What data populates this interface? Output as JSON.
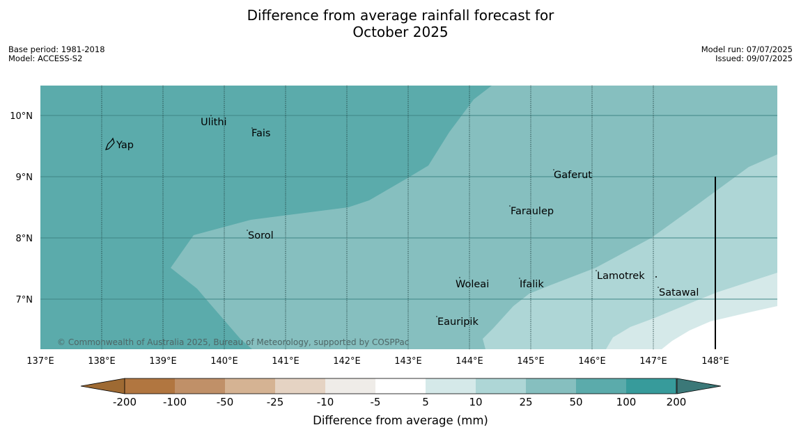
{
  "title": {
    "line1": "Difference from average rainfall forecast for",
    "line2": "October 2025"
  },
  "meta": {
    "base_period": "Base period: 1981-2018",
    "model": "Model: ACCESS-S2",
    "model_run": "Model run: 07/07/2025",
    "issued": "Issued: 09/07/2025"
  },
  "map": {
    "lon_labels": [
      "137°E",
      "138°E",
      "139°E",
      "140°E",
      "141°E",
      "142°E",
      "143°E",
      "144°E",
      "145°E",
      "146°E",
      "147°E",
      "148°E"
    ],
    "lat_labels": [
      "10°N",
      "9°N",
      "8°N",
      "7°N"
    ],
    "places": [
      {
        "name": "Yap"
      },
      {
        "name": "Ulithi"
      },
      {
        "name": "Fais"
      },
      {
        "name": "Gaferut"
      },
      {
        "name": "Faraulep"
      },
      {
        "name": "Sorol"
      },
      {
        "name": "Woleai"
      },
      {
        "name": "Ifalik"
      },
      {
        "name": "Lamotrek"
      },
      {
        "name": "Satawal"
      },
      {
        "name": "Eauripik"
      }
    ],
    "copyright": "© Commonwealth of Australia 2025, Bureau of Meteorology, supported by COSPPac",
    "colors": {
      "ocean_dark": "#5babab",
      "band_50": "#86bfbf",
      "band_25": "#aed6d6",
      "band_10": "#d5e9e9",
      "band_5": "#ffffff"
    }
  },
  "colorbar": {
    "ticks": [
      "-200",
      "-100",
      "-50",
      "-25",
      "-10",
      "-5",
      "5",
      "10",
      "25",
      "50",
      "100",
      "200"
    ],
    "colors": [
      "#9e6a33",
      "#b17640",
      "#c09068",
      "#d5b393",
      "#e5d3c3",
      "#efece8",
      "#ffffff",
      "#d5e9e9",
      "#aed6d6",
      "#86bfbf",
      "#5babab",
      "#379b9b",
      "#3b7878"
    ],
    "label": "Difference from average (mm)"
  }
}
